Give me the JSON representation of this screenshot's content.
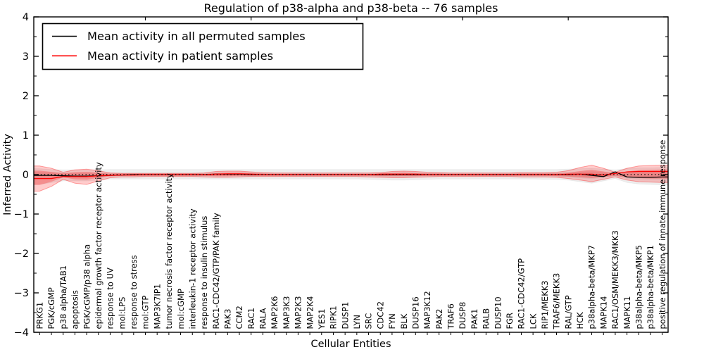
{
  "chart_data": {
    "type": "line",
    "title": "Regulation of p38-alpha and p38-beta -- 76 samples",
    "xlabel": "Cellular Entities",
    "ylabel": "Inferred Activity",
    "ylim": [
      -4,
      4
    ],
    "ytick_labels": [
      "−4",
      "−3",
      "−2",
      "−1",
      "0",
      "1",
      "2",
      "3",
      "4"
    ],
    "grid": false,
    "zero_line": {
      "style": "dotted",
      "color": "#000000",
      "y": 0
    },
    "legend": {
      "position": "upper left",
      "entries": [
        {
          "label": "Mean activity in all permuted samples",
          "color": "#000000"
        },
        {
          "label": "Mean activity in patient samples",
          "color": "#ff0000"
        }
      ]
    },
    "categories": [
      "PRKG1",
      "PGK/cGMP",
      "p38 alpha/TAB1",
      "apoptosis",
      "PGK/cGMP/p38 alpha",
      "epidermal growth factor receptor activity",
      "response to UV",
      "mol:LPS",
      "response to stress",
      "mol:GTP",
      "MAP3K7IP1",
      "tumor necrosis factor receptor activity",
      "mol:cGMP",
      "interleukin-1 receptor activity",
      "response to insulin stimulus",
      "RAC1-CDC42/GTP/PAK family",
      "PAK3",
      "CCM2",
      "RAC1",
      "RALA",
      "MAP2K6",
      "MAP3K3",
      "MAP2K3",
      "MAP2K4",
      "YES1",
      "RIPK1",
      "DUSP1",
      "LYN",
      "SRC",
      "CDC42",
      "FYN",
      "BLK",
      "DUSP16",
      "MAP3K12",
      "PAK2",
      "TRAF6",
      "DUSP8",
      "PAK1",
      "RALB",
      "DUSP10",
      "FGR",
      "RAC1-CDC42/GTP",
      "LCK",
      "RIP1/MEKK3",
      "TRAF6/MEKK3",
      "RAL/GTP",
      "HCK",
      "p38alpha-beta/MKP7",
      "MAPK14",
      "RAC1/OSM/MEKK3/MKK3",
      "MAPK11",
      "p38alpha-beta/MKP5",
      "p38alpha-beta/MKP1",
      "positive regulation of innate immune response"
    ],
    "series": [
      {
        "name": "Mean activity in all permuted samples",
        "color": "#000000",
        "values": [
          -0.02,
          -0.02,
          -0.03,
          -0.04,
          -0.04,
          -0.03,
          -0.02,
          -0.01,
          0,
          0,
          0,
          0,
          0,
          0,
          0,
          0.01,
          0.01,
          0.01,
          0,
          0,
          0,
          0,
          0,
          0,
          0,
          0,
          0,
          0,
          0,
          0,
          0,
          0,
          0,
          0,
          0,
          0,
          0,
          0,
          0,
          0,
          0,
          0,
          0,
          0,
          0,
          0,
          0.01,
          -0.02,
          -0.05,
          0.07,
          -0.06,
          -0.07,
          -0.07,
          -0.06
        ]
      },
      {
        "name": "Mean activity in patient samples",
        "color": "#ff0000",
        "values": [
          -0.1,
          -0.1,
          -0.05,
          -0.05,
          -0.05,
          -0.03,
          -0.02,
          -0.01,
          -0.01,
          0,
          0,
          0,
          0,
          0,
          0,
          0.01,
          0.02,
          0.02,
          0.01,
          0,
          0,
          0,
          0,
          0,
          0,
          0,
          0,
          0,
          0,
          0.01,
          0.01,
          0.01,
          0.01,
          0,
          0,
          0,
          0,
          0,
          0,
          0,
          0,
          0,
          0,
          0,
          0,
          0.01,
          0.01,
          0.01,
          -0.01,
          0.03,
          0.07,
          0.08,
          0.08,
          0.08
        ]
      }
    ],
    "bands": [
      {
        "name": "permuted-band-outer",
        "color": "#999999",
        "opacity": 0.17,
        "edge_opacity": 0.12,
        "upper": [
          0.15,
          0.13,
          0.12,
          0.12,
          0.12,
          0.12,
          0.13,
          0.13,
          0.13,
          0.13,
          0.13,
          0.13,
          0.13,
          0.13,
          0.13,
          0.13,
          0.13,
          0.13,
          0.13,
          0.13,
          0.13,
          0.13,
          0.13,
          0.13,
          0.13,
          0.13,
          0.13,
          0.13,
          0.13,
          0.13,
          0.13,
          0.13,
          0.13,
          0.13,
          0.13,
          0.13,
          0.13,
          0.13,
          0.13,
          0.13,
          0.13,
          0.13,
          0.13,
          0.13,
          0.13,
          0.14,
          0.15,
          0.16,
          0.14,
          0.12,
          0.15,
          0.17,
          0.17,
          0.18
        ],
        "lower": [
          -0.25,
          -0.2,
          -0.16,
          -0.16,
          -0.16,
          -0.14,
          -0.11,
          -0.11,
          -0.11,
          -0.11,
          -0.11,
          -0.11,
          -0.11,
          -0.11,
          -0.11,
          -0.11,
          -0.11,
          -0.11,
          -0.11,
          -0.11,
          -0.11,
          -0.11,
          -0.11,
          -0.11,
          -0.11,
          -0.11,
          -0.11,
          -0.11,
          -0.12,
          -0.13,
          -0.14,
          -0.14,
          -0.13,
          -0.12,
          -0.11,
          -0.11,
          -0.11,
          -0.11,
          -0.11,
          -0.11,
          -0.11,
          -0.11,
          -0.11,
          -0.12,
          -0.12,
          -0.14,
          -0.18,
          -0.22,
          -0.16,
          -0.1,
          -0.2,
          -0.24,
          -0.25,
          -0.26
        ]
      },
      {
        "name": "permuted-band-inner",
        "color": "#999999",
        "opacity": 0.17,
        "edge_opacity": 0.0,
        "upper": [
          0.07,
          0.06,
          0.05,
          0.05,
          0.05,
          0.05,
          0.05,
          0.05,
          0.05,
          0.05,
          0.05,
          0.05,
          0.05,
          0.05,
          0.05,
          0.05,
          0.05,
          0.05,
          0.05,
          0.05,
          0.05,
          0.05,
          0.05,
          0.05,
          0.05,
          0.05,
          0.05,
          0.05,
          0.05,
          0.05,
          0.05,
          0.05,
          0.05,
          0.05,
          0.05,
          0.05,
          0.05,
          0.05,
          0.05,
          0.05,
          0.05,
          0.05,
          0.05,
          0.05,
          0.05,
          0.06,
          0.07,
          0.08,
          0.06,
          0.04,
          0.07,
          0.09,
          0.09,
          0.09
        ],
        "lower": [
          -0.12,
          -0.1,
          -0.08,
          -0.08,
          -0.08,
          -0.07,
          -0.05,
          -0.05,
          -0.05,
          -0.05,
          -0.05,
          -0.05,
          -0.05,
          -0.05,
          -0.05,
          -0.05,
          -0.05,
          -0.05,
          -0.05,
          -0.05,
          -0.05,
          -0.05,
          -0.05,
          -0.05,
          -0.05,
          -0.05,
          -0.05,
          -0.05,
          -0.05,
          -0.05,
          -0.05,
          -0.05,
          -0.05,
          -0.05,
          -0.05,
          -0.05,
          -0.05,
          -0.05,
          -0.05,
          -0.05,
          -0.05,
          -0.05,
          -0.05,
          -0.05,
          -0.05,
          -0.07,
          -0.09,
          -0.11,
          -0.08,
          -0.05,
          -0.1,
          -0.12,
          -0.13,
          -0.13
        ]
      },
      {
        "name": "patient-band-outer",
        "color": "#ff0000",
        "opacity": 0.2,
        "edge_opacity": 0.35,
        "upper": [
          0.22,
          0.16,
          0.06,
          0.12,
          0.14,
          0.1,
          0.04,
          0.03,
          0.03,
          0.03,
          0.03,
          0.03,
          0.03,
          0.03,
          0.04,
          0.08,
          0.09,
          0.09,
          0.07,
          0.05,
          0.04,
          0.04,
          0.04,
          0.04,
          0.04,
          0.04,
          0.04,
          0.04,
          0.04,
          0.05,
          0.08,
          0.09,
          0.08,
          0.06,
          0.05,
          0.04,
          0.04,
          0.04,
          0.04,
          0.04,
          0.04,
          0.05,
          0.05,
          0.05,
          0.06,
          0.1,
          0.18,
          0.24,
          0.16,
          0.06,
          0.16,
          0.22,
          0.23,
          0.24
        ],
        "lower": [
          -0.42,
          -0.3,
          -0.12,
          -0.22,
          -0.25,
          -0.16,
          -0.08,
          -0.06,
          -0.06,
          -0.05,
          -0.05,
          -0.05,
          -0.05,
          -0.05,
          -0.06,
          -0.07,
          -0.07,
          -0.06,
          -0.05,
          -0.05,
          -0.05,
          -0.05,
          -0.05,
          -0.05,
          -0.05,
          -0.05,
          -0.05,
          -0.05,
          -0.06,
          -0.07,
          -0.08,
          -0.08,
          -0.07,
          -0.06,
          -0.05,
          -0.05,
          -0.05,
          -0.05,
          -0.05,
          -0.05,
          -0.05,
          -0.06,
          -0.06,
          -0.06,
          -0.07,
          -0.1,
          -0.14,
          -0.18,
          -0.12,
          -0.06,
          -0.14,
          -0.18,
          -0.19,
          -0.2
        ]
      },
      {
        "name": "patient-band-inner",
        "color": "#ff0000",
        "opacity": 0.25,
        "edge_opacity": 0.0,
        "upper": [
          0.1,
          0.07,
          0.03,
          0.06,
          0.07,
          0.05,
          0.02,
          0.02,
          0.02,
          0.02,
          0.02,
          0.02,
          0.02,
          0.02,
          0.02,
          0.04,
          0.05,
          0.05,
          0.04,
          0.03,
          0.02,
          0.02,
          0.02,
          0.02,
          0.02,
          0.02,
          0.02,
          0.02,
          0.02,
          0.03,
          0.04,
          0.05,
          0.04,
          0.03,
          0.03,
          0.02,
          0.02,
          0.02,
          0.02,
          0.02,
          0.02,
          0.03,
          0.03,
          0.03,
          0.03,
          0.05,
          0.09,
          0.12,
          0.08,
          0.03,
          0.08,
          0.11,
          0.12,
          0.13
        ],
        "lower": [
          -0.26,
          -0.18,
          -0.07,
          -0.12,
          -0.13,
          -0.08,
          -0.04,
          -0.03,
          -0.03,
          -0.03,
          -0.03,
          -0.03,
          -0.03,
          -0.03,
          -0.03,
          -0.04,
          -0.04,
          -0.03,
          -0.03,
          -0.03,
          -0.03,
          -0.03,
          -0.03,
          -0.03,
          -0.03,
          -0.03,
          -0.03,
          -0.03,
          -0.03,
          -0.04,
          -0.04,
          -0.04,
          -0.04,
          -0.03,
          -0.03,
          -0.03,
          -0.03,
          -0.03,
          -0.03,
          -0.03,
          -0.03,
          -0.03,
          -0.03,
          -0.03,
          -0.04,
          -0.05,
          -0.07,
          -0.09,
          -0.06,
          -0.03,
          -0.07,
          -0.09,
          -0.1,
          -0.1
        ]
      }
    ],
    "top_tick_indices": [
      9,
      18,
      27,
      36,
      45
    ],
    "colors": {
      "frame": "#000000",
      "background": "#ffffff"
    }
  }
}
